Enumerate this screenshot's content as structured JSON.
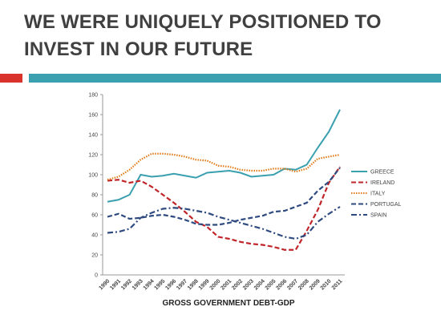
{
  "slide": {
    "title_lines": [
      "WE WERE UNIQUELY POSITIONED TO",
      "INVEST IN OUR FUTURE"
    ]
  },
  "chart_data": {
    "type": "line",
    "x_label": "GROSS GOVERNMENT DEBT-GDP",
    "categories": [
      "1990",
      "1991",
      "1992",
      "1993",
      "1994",
      "1995",
      "1996",
      "1997",
      "1998",
      "1999",
      "2000",
      "2001",
      "2002",
      "2003",
      "2004",
      "2005",
      "2006",
      "2007",
      "2008",
      "2009",
      "2010",
      "2011"
    ],
    "series": [
      {
        "name": "GREECE",
        "color": "#3a9fae",
        "line_style": "solid",
        "values": [
          73,
          75,
          80,
          100,
          98,
          99,
          101,
          99,
          97,
          102,
          103,
          104,
          102,
          98,
          99,
          100,
          106,
          105,
          110,
          127,
          143,
          165
        ]
      },
      {
        "name": "IRELAND",
        "color": "#c0252a",
        "line_style": "dashed",
        "values": [
          94,
          95,
          92,
          94,
          88,
          80,
          72,
          63,
          53,
          48,
          38,
          36,
          33,
          31,
          30,
          28,
          25,
          25,
          44,
          65,
          92,
          108
        ]
      },
      {
        "name": "ITALY",
        "color": "#e07b1a",
        "line_style": "dotted",
        "values": [
          95,
          98,
          105,
          115,
          121,
          121,
          120,
          118,
          115,
          114,
          109,
          108,
          105,
          104,
          104,
          106,
          106,
          103,
          106,
          116,
          118,
          120
        ]
      },
      {
        "name": "PORTUGAL",
        "color": "#2e4a7f",
        "line_style": "dashed",
        "values": [
          58,
          61,
          56,
          57,
          59,
          60,
          58,
          55,
          51,
          50,
          50,
          52,
          55,
          57,
          59,
          63,
          64,
          68,
          72,
          84,
          93,
          107
        ]
      },
      {
        "name": "SPAIN",
        "color": "#2e4a7f",
        "line_style": "dashdot",
        "values": [
          42,
          43,
          46,
          57,
          62,
          66,
          67,
          66,
          64,
          62,
          58,
          55,
          52,
          49,
          46,
          42,
          38,
          36,
          40,
          53,
          61,
          68
        ]
      }
    ],
    "ylim": [
      0,
      180
    ],
    "yticks": [
      0,
      20,
      40,
      60,
      80,
      100,
      120,
      140,
      160,
      180
    ],
    "legend": "right"
  }
}
